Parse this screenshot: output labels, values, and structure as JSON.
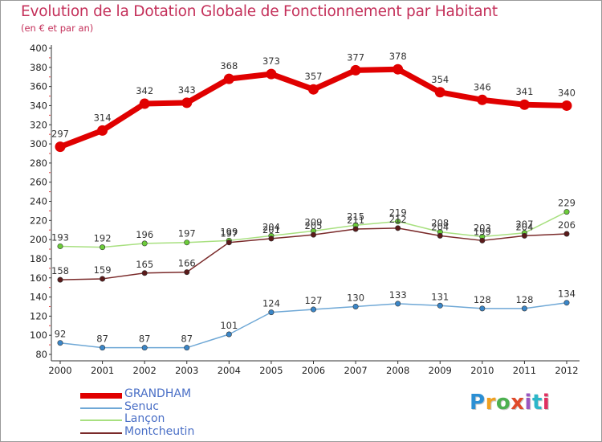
{
  "header": {
    "title": "Evolution de la Dotation Globale de Fonctionnement par Habitant",
    "subtitle": "(en € et par an)"
  },
  "logo": {
    "text": "Proxiti",
    "colors": [
      "#2b8fd4",
      "#f0a020",
      "#4cb050",
      "#e04a2a",
      "#9a55c0",
      "#2bb6c8",
      "#e03060"
    ]
  },
  "chart_data": {
    "type": "line",
    "title": "Evolution de la Dotation Globale de Fonctionnement par Habitant",
    "subtitle": "(en € et par an)",
    "xlabel": "",
    "ylabel": "",
    "x": [
      "2000",
      "2001",
      "2002",
      "2003",
      "2004",
      "2005",
      "2006",
      "2007",
      "2008",
      "2009",
      "2010",
      "2011",
      "2012"
    ],
    "ylim": [
      80,
      400
    ],
    "yticks": [
      80,
      100,
      120,
      140,
      160,
      180,
      200,
      220,
      240,
      260,
      280,
      300,
      320,
      340,
      360,
      380,
      400
    ],
    "grid": false,
    "legend_position": "bottom-left",
    "series": [
      {
        "name": "GRANDHAM",
        "color": "#e00000",
        "style": "thick",
        "values": [
          297,
          314,
          342,
          343,
          368,
          373,
          357,
          377,
          378,
          354,
          346,
          341,
          340
        ]
      },
      {
        "name": "Senuc",
        "color": "#6fa8d6",
        "marker": "#3a86c8",
        "style": "thin",
        "values": [
          92,
          87,
          87,
          87,
          101,
          124,
          127,
          130,
          133,
          131,
          128,
          128,
          134
        ]
      },
      {
        "name": "Lançon",
        "color": "#a8e080",
        "marker": "#6ccc3a",
        "style": "thin",
        "values": [
          193,
          192,
          196,
          197,
          199,
          204,
          209,
          215,
          219,
          208,
          203,
          207,
          229
        ]
      },
      {
        "name": "Montcheutin",
        "color": "#7a2a2a",
        "marker": "#5a1a1a",
        "style": "thin",
        "values": [
          158,
          159,
          165,
          166,
          197,
          201,
          205,
          211,
          212,
          204,
          199,
          204,
          206
        ]
      }
    ]
  }
}
